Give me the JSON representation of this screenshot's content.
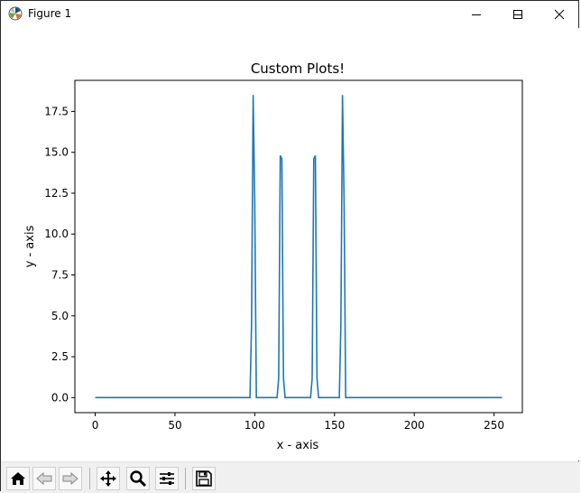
{
  "window": {
    "title": "Figure 1",
    "controls": [
      "minimize-icon",
      "maximize-icon",
      "close-icon"
    ]
  },
  "toolbar": {
    "buttons": [
      {
        "name": "home-button",
        "icon": "home-icon"
      },
      {
        "name": "back-button",
        "icon": "back-arrow-icon"
      },
      {
        "name": "forward-button",
        "icon": "forward-arrow-icon"
      },
      {
        "name": "pan-button",
        "icon": "move-icon"
      },
      {
        "name": "zoom-button",
        "icon": "magnifier-icon"
      },
      {
        "name": "configure-subplots-button",
        "icon": "sliders-icon"
      },
      {
        "name": "save-button",
        "icon": "floppy-disk-icon"
      }
    ]
  },
  "chart_data": {
    "type": "line",
    "title": "Custom Plots!",
    "xlabel": "x - axis",
    "ylabel": "y - axis",
    "xlim": [
      -12.75,
      267.75
    ],
    "ylim": [
      -0.92,
      19.4
    ],
    "xticks": [
      0,
      50,
      100,
      150,
      200,
      250
    ],
    "xtick_labels": [
      "0",
      "50",
      "100",
      "150",
      "200",
      "250"
    ],
    "yticks": [
      0,
      2.5,
      5,
      7.5,
      10,
      12.5,
      15,
      17.5
    ],
    "ytick_labels": [
      "0.0",
      "2.5",
      "5.0",
      "7.5",
      "10.0",
      "12.5",
      "15.0",
      "17.5"
    ],
    "grid": false,
    "series": [
      {
        "color": "#1f77b4",
        "x": [
          0,
          97,
          98,
          99,
          100,
          101,
          114,
          115,
          116,
          117,
          118,
          119,
          135,
          136,
          137,
          138,
          139,
          140,
          153,
          154,
          155,
          156,
          157,
          255
        ],
        "y": [
          0,
          0,
          4.5,
          18.5,
          12,
          0,
          0,
          1.2,
          14.8,
          14.6,
          1.2,
          0,
          0,
          1.2,
          14.6,
          14.8,
          1.2,
          0,
          0,
          4.5,
          18.5,
          12,
          0,
          0
        ]
      }
    ]
  }
}
